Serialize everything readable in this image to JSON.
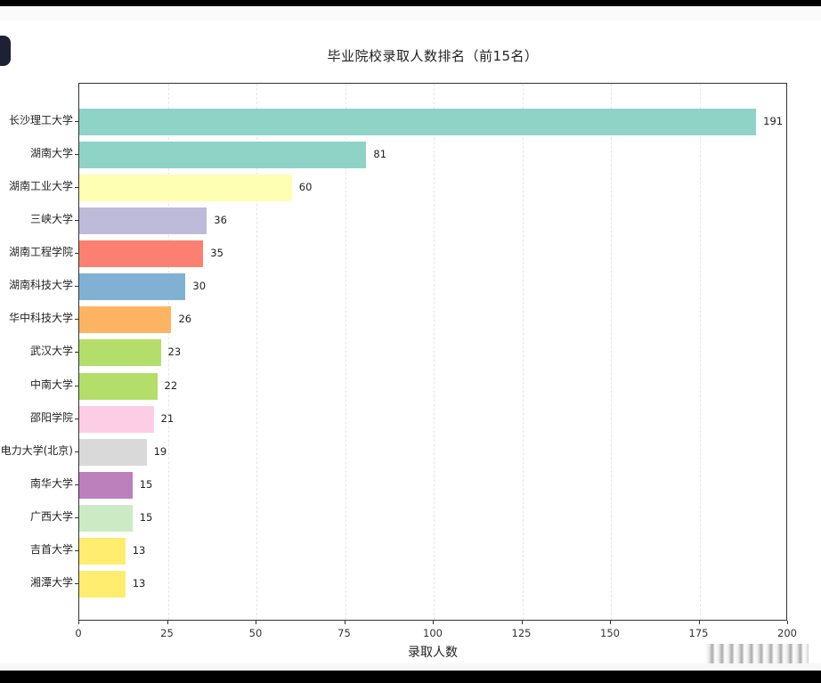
{
  "page": {
    "title": "毕业院校录取人数排名（前15名）",
    "x_axis_title": "录取人数"
  },
  "chart_data": {
    "type": "bar",
    "orientation": "horizontal",
    "title": "毕业院校录取人数排名（前15名）",
    "xlabel": "录取人数",
    "ylabel": "",
    "xlim": [
      0,
      200
    ],
    "x_ticks": [
      0,
      25,
      50,
      75,
      100,
      125,
      150,
      175,
      200
    ],
    "grid": "x-axis dashed light gray",
    "legend": "none",
    "data_labels": true,
    "categories": [
      "长沙理工大学",
      "湖南大学",
      "湖南工业大学",
      "三峡大学",
      "湖南工程学院",
      "湖南科技大学",
      "华中科技大学",
      "武汉大学",
      "中南大学",
      "邵阳学院",
      "电力大学(北京)",
      "南华大学",
      "广西大学",
      "吉首大学",
      "湘潭大学"
    ],
    "values": [
      191,
      81,
      60,
      36,
      35,
      30,
      26,
      23,
      22,
      21,
      19,
      15,
      15,
      13,
      13
    ],
    "colors": [
      "#8fd3c7",
      "#8fd3c7",
      "#ffffb3",
      "#bebada",
      "#fb8072",
      "#80b1d3",
      "#fdb462",
      "#b3de69",
      "#b3de69",
      "#fccde5",
      "#d9d9d9",
      "#bc80bd",
      "#ccebc5",
      "#ffed6f",
      "#ffed6f"
    ]
  }
}
